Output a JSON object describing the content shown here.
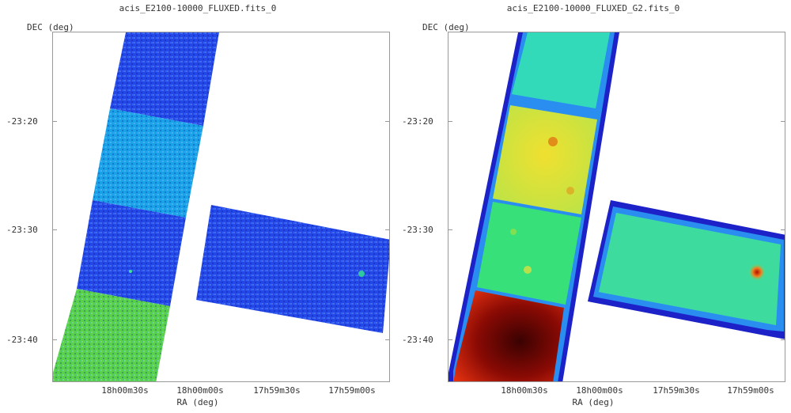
{
  "panels": [
    {
      "title": "acis_E2100-10000_FLUXED.fits_0",
      "ylabel": "DEC (deg)",
      "xlabel": "RA (deg)",
      "yticks": [
        "-23:20",
        "-23:30",
        "-23:40"
      ],
      "xticks": [
        "18h00m30s",
        "18h00m00s",
        "17h59m30s",
        "17h59m00s"
      ],
      "colormap": "raw-counts"
    },
    {
      "title": "acis_E2100-10000_FLUXED_G2.fits_0",
      "ylabel": "DEC (deg)",
      "xlabel": "RA (deg)",
      "yticks": [
        "-23:20",
        "-23:30",
        "-23:40"
      ],
      "xticks": [
        "18h00m30s",
        "18h00m00s",
        "17h59m30s",
        "17h59m00s"
      ],
      "colormap": "smoothed"
    }
  ],
  "colors": {
    "blue_chip": "#2448e8",
    "cyan_chip": "#1aa2e8",
    "green_chip": "#57d24a",
    "s_cyan": "#28d6d0",
    "s_green": "#38e07a",
    "s_yellow": "#d8e838",
    "s_red": "#c81e0a",
    "edge": "#1d22c8"
  }
}
